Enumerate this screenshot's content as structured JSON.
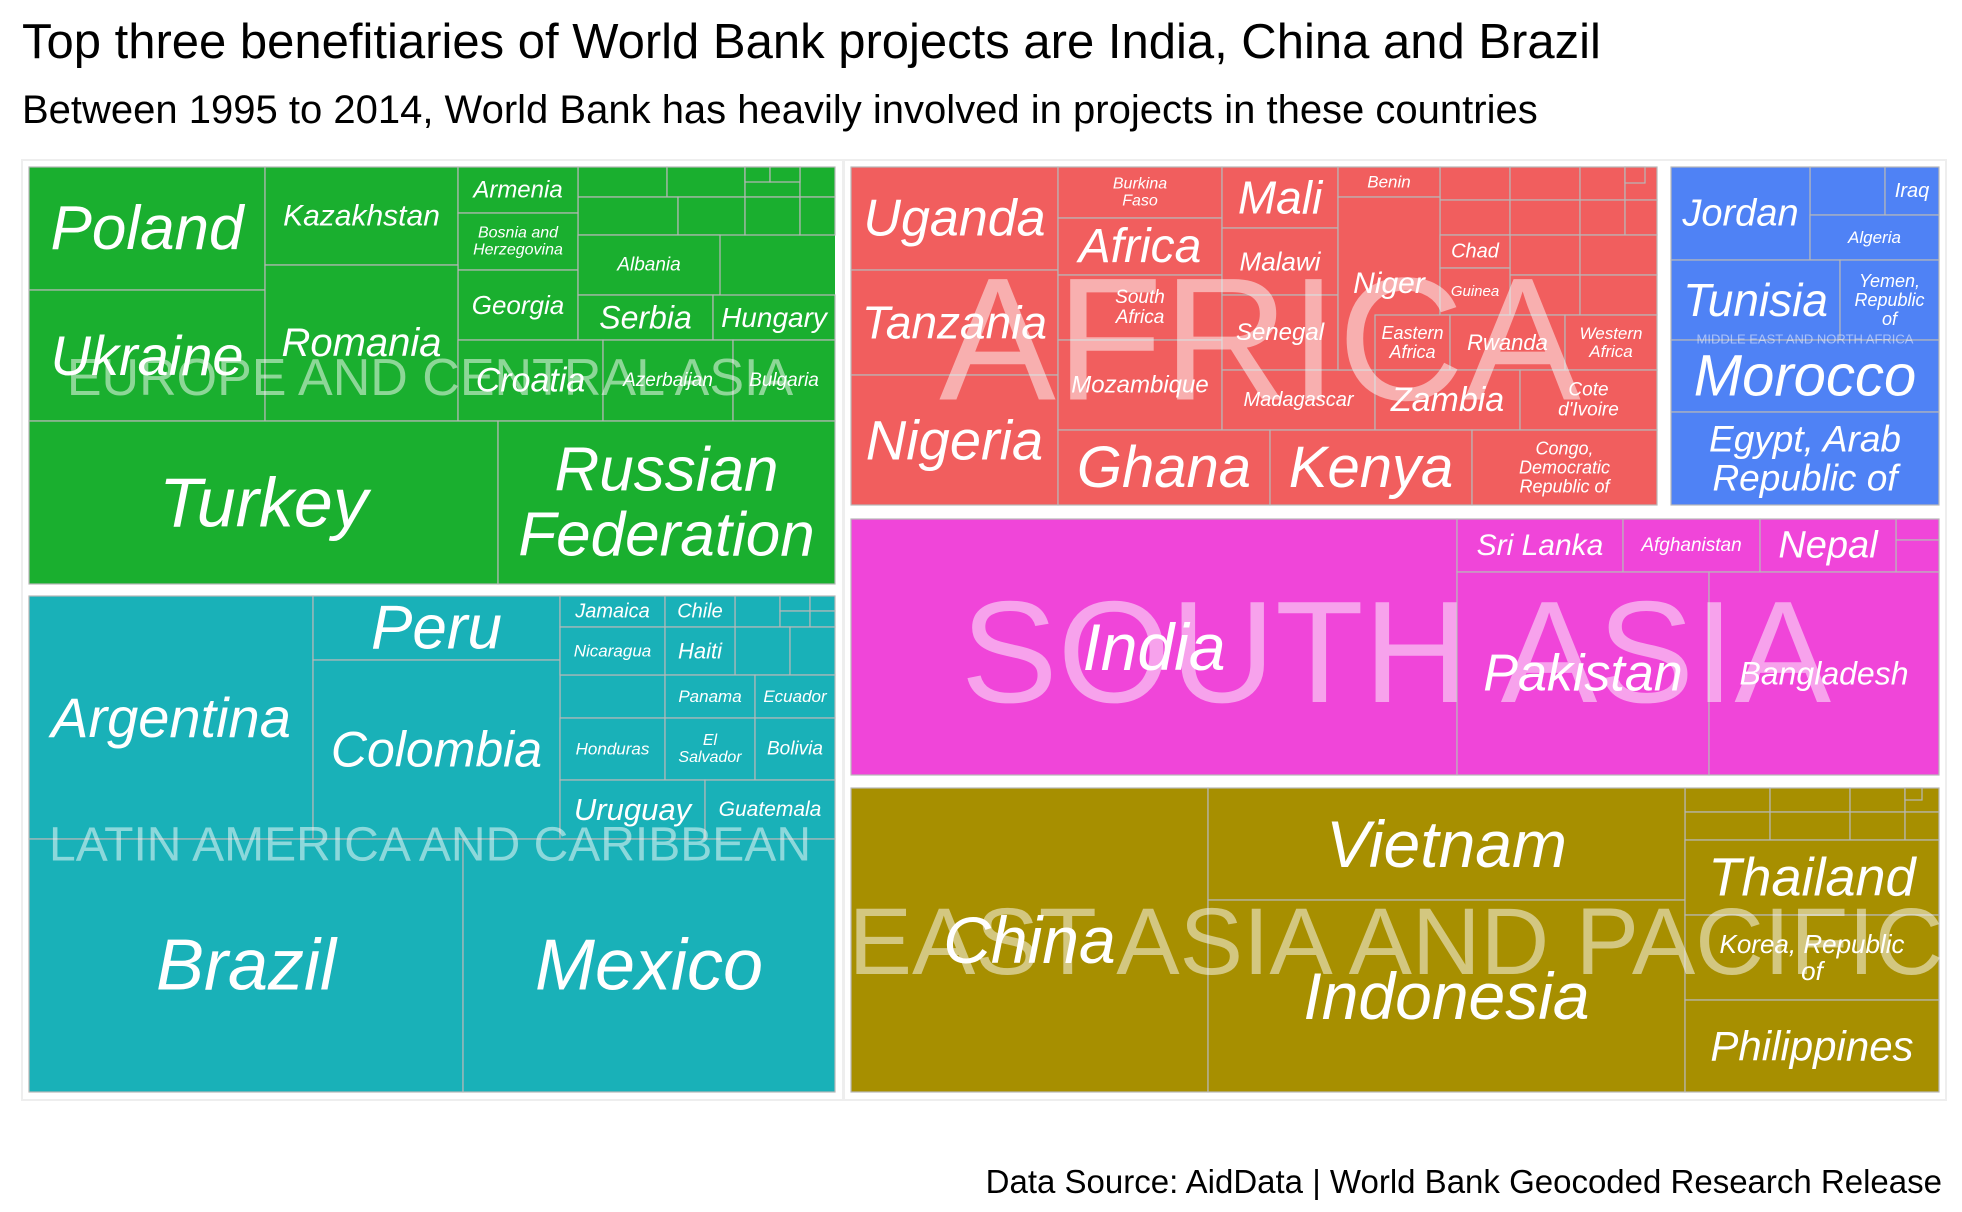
{
  "title": "Top three benefitiaries of World Bank projects are India, China and Brazil",
  "subtitle": "Between 1995 to 2014, World Bank has heavily involved in projects in these countries",
  "caption": "Data Source: AidData | World Bank Geocoded Research Release",
  "chart_data": {
    "type": "treemap",
    "regions": [
      {
        "name": "EUROPE AND CENTRAL ASIA",
        "color": "#1AAF2F",
        "countries": [
          "Poland",
          "Kazakhstan",
          "Armenia",
          "Bosnia and Herzegovina",
          "Georgia",
          "Albania",
          "Serbia",
          "Hungary",
          "Ukraine",
          "Romania",
          "Croatia",
          "Azerbaijan",
          "Bulgaria",
          "Turkey",
          "Russian Federation"
        ]
      },
      {
        "name": "LATIN AMERICA AND CARIBBEAN",
        "color": "#19B1B8",
        "countries": [
          "Argentina",
          "Peru",
          "Colombia",
          "Jamaica",
          "Chile",
          "Nicaragua",
          "Haiti",
          "Panama",
          "Ecuador",
          "Honduras",
          "El Salvador",
          "Bolivia",
          "Uruguay",
          "Guatemala",
          "Brazil",
          "Mexico"
        ]
      },
      {
        "name": "AFRICA",
        "color": "#F15E5E",
        "countries": [
          "Uganda",
          "Tanzania",
          "Nigeria",
          "Burkina Faso",
          "Africa",
          "South Africa",
          "Mozambique",
          "Mali",
          "Malawi",
          "Senegal",
          "Madagascar",
          "Benin",
          "Niger",
          "Chad",
          "Guinea",
          "Eastern Africa",
          "Rwanda",
          "Western Africa",
          "Zambia",
          "Cote d'Ivoire",
          "Ghana",
          "Kenya",
          "Congo, Democratic Republic of"
        ]
      },
      {
        "name": "MIDDLE EAST AND NORTH AFRICA",
        "color": "#4F82F5",
        "countries": [
          "Jordan",
          "Iraq",
          "Algeria",
          "Tunisia",
          "Yemen, Republic of",
          "Morocco",
          "Egypt, Arab Republic of"
        ]
      },
      {
        "name": "SOUTH ASIA",
        "color": "#F045D9",
        "countries": [
          "India",
          "Sri Lanka",
          "Afghanistan",
          "Nepal",
          "Pakistan",
          "Bangladesh"
        ]
      },
      {
        "name": "EAST ASIA AND PACIFIC",
        "color": "#A78F00",
        "countries": [
          "China",
          "Vietnam",
          "Indonesia",
          "Thailand",
          "Korea, Republic of",
          "Philippines"
        ]
      }
    ]
  }
}
